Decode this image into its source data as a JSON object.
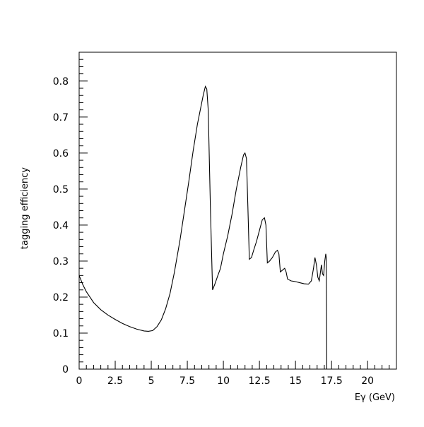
{
  "chart_data": {
    "type": "line",
    "title": "",
    "xlabel": "Eγ (GeV)",
    "ylabel": "tagging efficiency",
    "xlim": [
      0,
      22
    ],
    "ylim": [
      0,
      0.88
    ],
    "grid": false,
    "x_ticks": [
      0,
      2.5,
      5,
      7.5,
      10,
      12.5,
      15,
      17.5,
      20
    ],
    "x_tick_labels": [
      "0",
      "2.5",
      "5",
      "7.5",
      "10",
      "12.5",
      "15",
      "17.5",
      "20"
    ],
    "y_ticks": [
      0,
      0.1,
      0.2,
      0.3,
      0.4,
      0.5,
      0.6,
      0.7,
      0.8
    ],
    "y_tick_labels": [
      "0",
      "0.1",
      "0.2",
      "0.3",
      "0.4",
      "0.5",
      "0.6",
      "0.7",
      "0.8"
    ],
    "series": [
      {
        "x": [
          0,
          0.25,
          0.5,
          1.0,
          1.5,
          2.0,
          2.5,
          3.0,
          3.5,
          4.0,
          4.5,
          4.8,
          5.1,
          5.4,
          5.7,
          6.0,
          6.3,
          6.6,
          7.0,
          7.3,
          7.6,
          7.9,
          8.2,
          8.4,
          8.6,
          8.75,
          8.85,
          8.95,
          9.1,
          9.25,
          9.4,
          9.6,
          9.8,
          10.0,
          10.3,
          10.6,
          10.9,
          11.2,
          11.4,
          11.5,
          11.6,
          11.7,
          11.8,
          11.95,
          12.1,
          12.3,
          12.5,
          12.7,
          12.85,
          12.95,
          13.05,
          13.2,
          13.4,
          13.6,
          13.75,
          13.85,
          13.95,
          14.1,
          14.25,
          14.35,
          14.45,
          14.7,
          15.0,
          15.3,
          15.6,
          15.9,
          16.1,
          16.25,
          16.35,
          16.45,
          16.55,
          16.65,
          16.7,
          16.8,
          16.87,
          16.95,
          17.03,
          17.1,
          17.13,
          17.16,
          17.17
        ],
        "y": [
          0.26,
          0.235,
          0.215,
          0.185,
          0.165,
          0.15,
          0.138,
          0.127,
          0.118,
          0.111,
          0.106,
          0.105,
          0.107,
          0.118,
          0.137,
          0.168,
          0.21,
          0.268,
          0.36,
          0.44,
          0.52,
          0.605,
          0.68,
          0.72,
          0.76,
          0.785,
          0.778,
          0.72,
          0.45,
          0.22,
          0.235,
          0.258,
          0.28,
          0.32,
          0.37,
          0.43,
          0.5,
          0.56,
          0.595,
          0.6,
          0.585,
          0.45,
          0.305,
          0.31,
          0.33,
          0.355,
          0.385,
          0.415,
          0.42,
          0.4,
          0.295,
          0.3,
          0.31,
          0.325,
          0.33,
          0.32,
          0.27,
          0.275,
          0.28,
          0.27,
          0.25,
          0.245,
          0.243,
          0.24,
          0.237,
          0.236,
          0.245,
          0.28,
          0.31,
          0.29,
          0.255,
          0.245,
          0.26,
          0.29,
          0.265,
          0.26,
          0.3,
          0.32,
          0.31,
          0.1,
          0
        ]
      }
    ]
  }
}
